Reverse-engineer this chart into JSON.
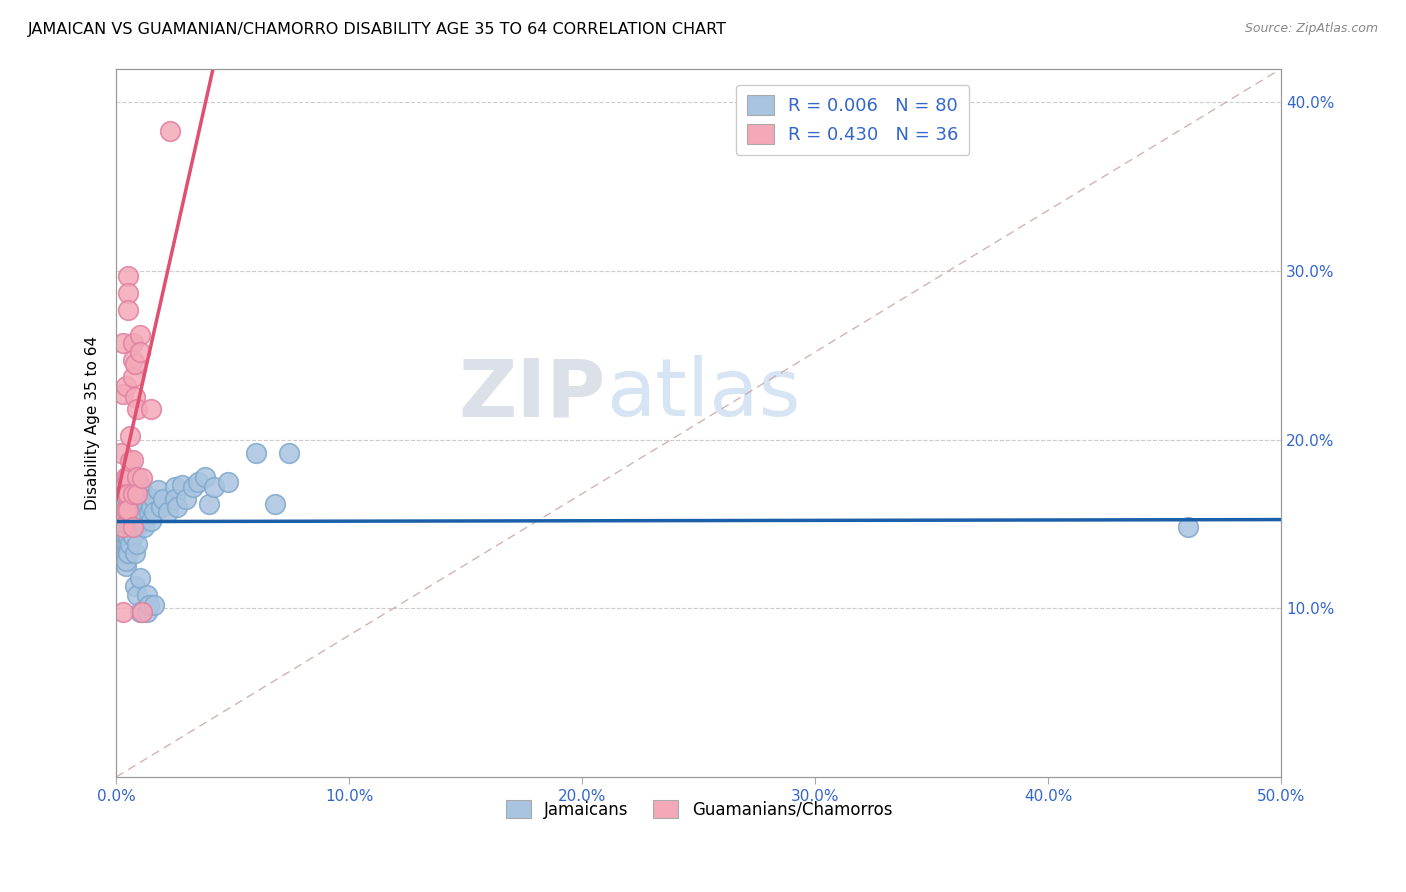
{
  "title": "JAMAICAN VS GUAMANIAN/CHAMORRO DISABILITY AGE 35 TO 64 CORRELATION CHART",
  "source": "Source: ZipAtlas.com",
  "ylabel": "Disability Age 35 to 64",
  "xlim": [
    0.0,
    0.5
  ],
  "ylim": [
    0.0,
    0.42
  ],
  "xticks": [
    0.0,
    0.1,
    0.2,
    0.3,
    0.4,
    0.5
  ],
  "yticks": [
    0.1,
    0.2,
    0.3,
    0.4
  ],
  "legend_labels": [
    "Jamaicans",
    "Guamanians/Chamorros"
  ],
  "jamaican_color": "#a8c4e0",
  "guamanian_color": "#f4a8b8",
  "jamaican_R": 0.006,
  "jamaican_N": 80,
  "guamanian_R": 0.43,
  "guamanian_N": 36,
  "watermark_zip": "ZIP",
  "watermark_atlas": "atlas",
  "blue_line_color": "#1a5fa8",
  "pink_line_color": "#e05070",
  "diagonal_color": "#c8a0a0",
  "jamaican_points": [
    [
      0.003,
      0.14
    ],
    [
      0.003,
      0.132
    ],
    [
      0.003,
      0.148
    ],
    [
      0.003,
      0.155
    ],
    [
      0.004,
      0.142
    ],
    [
      0.004,
      0.135
    ],
    [
      0.004,
      0.125
    ],
    [
      0.004,
      0.152
    ],
    [
      0.004,
      0.16
    ],
    [
      0.004,
      0.138
    ],
    [
      0.004,
      0.128
    ],
    [
      0.005,
      0.157
    ],
    [
      0.005,
      0.148
    ],
    [
      0.005,
      0.138
    ],
    [
      0.005,
      0.162
    ],
    [
      0.005,
      0.152
    ],
    [
      0.005,
      0.143
    ],
    [
      0.005,
      0.133
    ],
    [
      0.006,
      0.158
    ],
    [
      0.006,
      0.148
    ],
    [
      0.006,
      0.165
    ],
    [
      0.006,
      0.157
    ],
    [
      0.006,
      0.148
    ],
    [
      0.006,
      0.138
    ],
    [
      0.007,
      0.153
    ],
    [
      0.007,
      0.143
    ],
    [
      0.007,
      0.162
    ],
    [
      0.007,
      0.153
    ],
    [
      0.007,
      0.143
    ],
    [
      0.008,
      0.167
    ],
    [
      0.008,
      0.157
    ],
    [
      0.008,
      0.172
    ],
    [
      0.008,
      0.165
    ],
    [
      0.008,
      0.156
    ],
    [
      0.008,
      0.133
    ],
    [
      0.008,
      0.113
    ],
    [
      0.009,
      0.157
    ],
    [
      0.009,
      0.148
    ],
    [
      0.009,
      0.138
    ],
    [
      0.009,
      0.108
    ],
    [
      0.01,
      0.173
    ],
    [
      0.01,
      0.165
    ],
    [
      0.01,
      0.16
    ],
    [
      0.01,
      0.118
    ],
    [
      0.01,
      0.098
    ],
    [
      0.011,
      0.17
    ],
    [
      0.011,
      0.16
    ],
    [
      0.011,
      0.152
    ],
    [
      0.012,
      0.165
    ],
    [
      0.012,
      0.157
    ],
    [
      0.012,
      0.148
    ],
    [
      0.013,
      0.162
    ],
    [
      0.013,
      0.108
    ],
    [
      0.013,
      0.098
    ],
    [
      0.014,
      0.157
    ],
    [
      0.014,
      0.102
    ],
    [
      0.015,
      0.16
    ],
    [
      0.015,
      0.152
    ],
    [
      0.016,
      0.165
    ],
    [
      0.016,
      0.157
    ],
    [
      0.016,
      0.102
    ],
    [
      0.018,
      0.17
    ],
    [
      0.019,
      0.16
    ],
    [
      0.02,
      0.165
    ],
    [
      0.022,
      0.157
    ],
    [
      0.025,
      0.172
    ],
    [
      0.025,
      0.165
    ],
    [
      0.026,
      0.16
    ],
    [
      0.028,
      0.173
    ],
    [
      0.03,
      0.165
    ],
    [
      0.033,
      0.172
    ],
    [
      0.035,
      0.175
    ],
    [
      0.038,
      0.178
    ],
    [
      0.04,
      0.162
    ],
    [
      0.042,
      0.172
    ],
    [
      0.048,
      0.175
    ],
    [
      0.06,
      0.192
    ],
    [
      0.068,
      0.162
    ],
    [
      0.074,
      0.192
    ],
    [
      0.46,
      0.148
    ]
  ],
  "guamanian_points": [
    [
      0.002,
      0.192
    ],
    [
      0.003,
      0.257
    ],
    [
      0.003,
      0.227
    ],
    [
      0.003,
      0.172
    ],
    [
      0.003,
      0.157
    ],
    [
      0.003,
      0.148
    ],
    [
      0.003,
      0.098
    ],
    [
      0.004,
      0.232
    ],
    [
      0.004,
      0.178
    ],
    [
      0.004,
      0.168
    ],
    [
      0.004,
      0.158
    ],
    [
      0.005,
      0.297
    ],
    [
      0.005,
      0.287
    ],
    [
      0.005,
      0.277
    ],
    [
      0.005,
      0.178
    ],
    [
      0.005,
      0.168
    ],
    [
      0.005,
      0.158
    ],
    [
      0.006,
      0.202
    ],
    [
      0.006,
      0.187
    ],
    [
      0.007,
      0.257
    ],
    [
      0.007,
      0.247
    ],
    [
      0.007,
      0.237
    ],
    [
      0.007,
      0.188
    ],
    [
      0.007,
      0.168
    ],
    [
      0.007,
      0.148
    ],
    [
      0.008,
      0.245
    ],
    [
      0.008,
      0.225
    ],
    [
      0.009,
      0.218
    ],
    [
      0.009,
      0.178
    ],
    [
      0.009,
      0.168
    ],
    [
      0.01,
      0.262
    ],
    [
      0.01,
      0.252
    ],
    [
      0.011,
      0.098
    ],
    [
      0.011,
      0.177
    ],
    [
      0.015,
      0.218
    ],
    [
      0.023,
      0.383
    ]
  ],
  "pink_line_x": [
    0.0,
    0.5
  ],
  "pink_line_y_start": 0.115,
  "pink_line_slope": 5.2,
  "blue_line_y": 0.152
}
